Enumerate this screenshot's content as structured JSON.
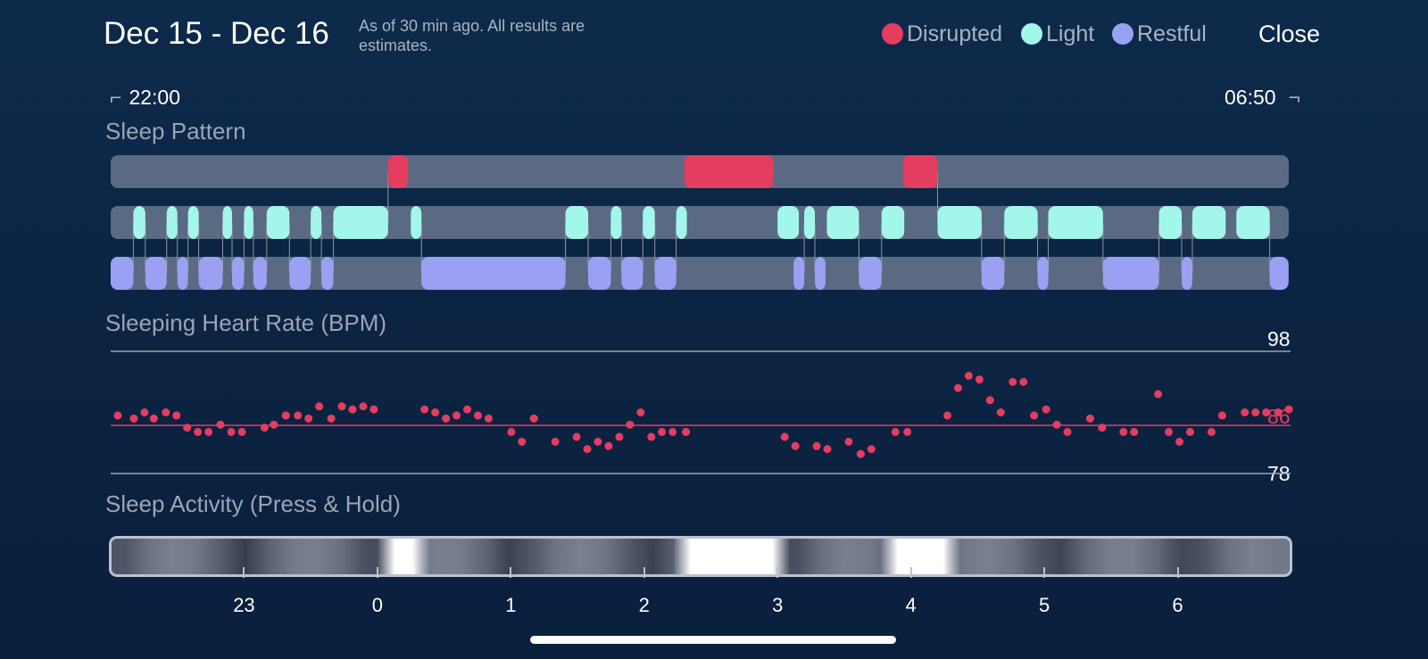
{
  "header": {
    "title": "Dec 15 - Dec 16",
    "note": "As of 30 min ago. All results are estimates.",
    "close_label": "Close"
  },
  "legend": [
    {
      "label": "Disrupted",
      "color": "#e53d5f"
    },
    {
      "label": "Light",
      "color": "#a2f6ea"
    },
    {
      "label": "Restful",
      "color": "#9aa0f2"
    }
  ],
  "time_range": {
    "start": "22:00",
    "end": "06:50"
  },
  "sections": {
    "pattern": "Sleep Pattern",
    "heart": "Sleeping Heart Rate (BPM)",
    "activity": "Sleep Activity (Press & Hold)"
  },
  "heart_rate": {
    "max_label": "98",
    "avg_label": "86",
    "min_label": "78"
  },
  "axis_ticks": [
    "23",
    "0",
    "1",
    "2",
    "3",
    "4",
    "5",
    "6"
  ],
  "sleep_pattern": {
    "hour_start": -2,
    "hour_end": 6.833,
    "disrupted": [
      [
        0.08,
        0.23
      ],
      [
        2.3,
        2.97
      ],
      [
        3.94,
        4.2
      ]
    ],
    "light": [
      [
        -1.83,
        -1.74
      ],
      [
        -1.58,
        -1.5
      ],
      [
        -1.42,
        -1.34
      ],
      [
        -1.16,
        -1.09
      ],
      [
        -1.0,
        -0.93
      ],
      [
        -0.83,
        -0.66
      ],
      [
        -0.5,
        -0.42
      ],
      [
        -0.33,
        0.08
      ],
      [
        0.25,
        0.33
      ],
      [
        1.41,
        1.58
      ],
      [
        1.75,
        1.83
      ],
      [
        1.99,
        2.08
      ],
      [
        2.24,
        2.32
      ],
      [
        3.0,
        3.16
      ],
      [
        3.2,
        3.28
      ],
      [
        3.37,
        3.61
      ],
      [
        3.78,
        3.95
      ],
      [
        4.2,
        4.53
      ],
      [
        4.7,
        4.95
      ],
      [
        5.03,
        5.44
      ],
      [
        5.86,
        6.03
      ],
      [
        6.11,
        6.36
      ],
      [
        6.44,
        6.69
      ]
    ],
    "restful": [
      [
        -2.0,
        -1.83
      ],
      [
        -1.74,
        -1.58
      ],
      [
        -1.5,
        -1.42
      ],
      [
        -1.34,
        -1.16
      ],
      [
        -1.09,
        -1.0
      ],
      [
        -0.93,
        -0.83
      ],
      [
        -0.66,
        -0.5
      ],
      [
        -0.42,
        -0.33
      ],
      [
        0.33,
        1.41
      ],
      [
        1.58,
        1.75
      ],
      [
        1.83,
        1.99
      ],
      [
        2.08,
        2.24
      ],
      [
        3.12,
        3.2
      ],
      [
        3.28,
        3.36
      ],
      [
        3.61,
        3.78
      ],
      [
        4.53,
        4.7
      ],
      [
        4.95,
        5.03
      ],
      [
        5.44,
        5.86
      ],
      [
        6.03,
        6.11
      ],
      [
        6.69,
        6.83
      ]
    ]
  },
  "heart_points": [
    [
      -2.0,
      87.5
    ],
    [
      -1.88,
      87.0
    ],
    [
      -1.8,
      88.0
    ],
    [
      -1.73,
      87.0
    ],
    [
      -1.64,
      88.0
    ],
    [
      -1.56,
      87.5
    ],
    [
      -1.48,
      85.5
    ],
    [
      -1.4,
      84.8
    ],
    [
      -1.32,
      84.8
    ],
    [
      -1.23,
      86.0
    ],
    [
      -1.15,
      84.8
    ],
    [
      -1.07,
      84.8
    ],
    [
      -0.9,
      85.5
    ],
    [
      -0.83,
      86.0
    ],
    [
      -0.74,
      87.5
    ],
    [
      -0.65,
      87.5
    ],
    [
      -0.57,
      87.0
    ],
    [
      -0.49,
      89.0
    ],
    [
      -0.4,
      87.0
    ],
    [
      -0.32,
      89.0
    ],
    [
      -0.24,
      88.5
    ],
    [
      -0.16,
      89.0
    ],
    [
      -0.08,
      88.5
    ],
    [
      0.3,
      88.5
    ],
    [
      0.38,
      88.0
    ],
    [
      0.46,
      87.0
    ],
    [
      0.54,
      87.5
    ],
    [
      0.62,
      88.5
    ],
    [
      0.7,
      87.5
    ],
    [
      0.78,
      87.0
    ],
    [
      0.95,
      84.8
    ],
    [
      1.03,
      83.2
    ],
    [
      1.12,
      87.0
    ],
    [
      1.28,
      83.2
    ],
    [
      1.44,
      84.0
    ],
    [
      1.52,
      82.0
    ],
    [
      1.6,
      83.2
    ],
    [
      1.68,
      82.5
    ],
    [
      1.76,
      84.0
    ],
    [
      1.84,
      86.0
    ],
    [
      1.92,
      88.0
    ],
    [
      2.0,
      84.0
    ],
    [
      2.08,
      84.8
    ],
    [
      2.16,
      84.8
    ],
    [
      2.26,
      84.8
    ],
    [
      3.0,
      84.0
    ],
    [
      3.08,
      82.5
    ],
    [
      3.24,
      82.5
    ],
    [
      3.32,
      82.0
    ],
    [
      3.48,
      83.2
    ],
    [
      3.57,
      81.2
    ],
    [
      3.65,
      82.0
    ],
    [
      3.83,
      84.8
    ],
    [
      3.92,
      84.8
    ],
    [
      4.22,
      87.5
    ],
    [
      4.3,
      92.0
    ],
    [
      4.38,
      94.0
    ],
    [
      4.46,
      93.4
    ],
    [
      4.54,
      90.0
    ],
    [
      4.62,
      88.0
    ],
    [
      4.71,
      93.0
    ],
    [
      4.79,
      93.0
    ],
    [
      4.87,
      87.5
    ],
    [
      4.96,
      88.5
    ],
    [
      5.04,
      86.0
    ],
    [
      5.12,
      84.8
    ],
    [
      5.29,
      87.0
    ],
    [
      5.38,
      85.5
    ],
    [
      5.54,
      84.8
    ],
    [
      5.62,
      84.8
    ],
    [
      5.8,
      91.0
    ],
    [
      5.88,
      84.8
    ],
    [
      5.96,
      83.2
    ],
    [
      6.04,
      84.8
    ],
    [
      6.2,
      84.8
    ],
    [
      6.28,
      87.5
    ],
    [
      6.45,
      88.0
    ],
    [
      6.53,
      88.0
    ],
    [
      6.61,
      88.0
    ],
    [
      6.7,
      88.0
    ],
    [
      6.78,
      88.5
    ]
  ],
  "activity_highlights": [
    [
      0.08,
      0.3
    ],
    [
      2.3,
      3.0
    ],
    [
      3.85,
      4.28
    ]
  ]
}
